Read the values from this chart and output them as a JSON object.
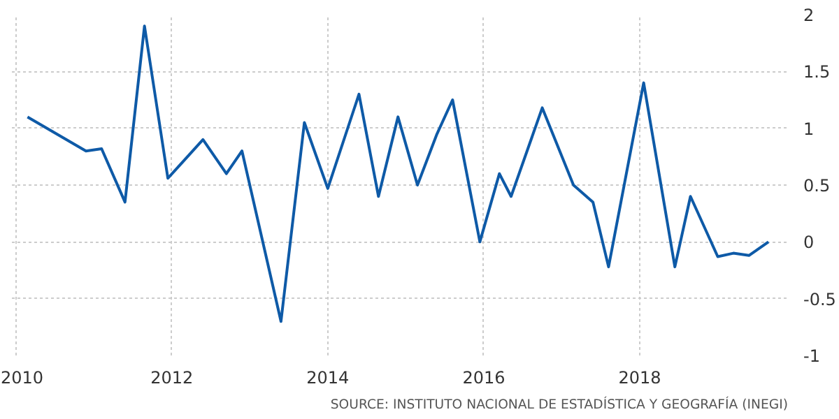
{
  "chart_data": {
    "type": "line",
    "x": [
      2010.15,
      2010.9,
      2011.1,
      2011.4,
      2011.65,
      2011.95,
      2012.4,
      2012.7,
      2012.9,
      2013.4,
      2013.7,
      2014.0,
      2014.4,
      2014.65,
      2014.9,
      2015.15,
      2015.4,
      2015.6,
      2015.95,
      2016.2,
      2016.35,
      2016.75,
      2017.15,
      2017.4,
      2017.6,
      2018.05,
      2018.45,
      2018.65,
      2019.0,
      2019.2,
      2019.4,
      2019.65
    ],
    "series": [
      {
        "color": "#0e5aa7",
        "values": [
          1.1,
          0.8,
          0.82,
          0.35,
          1.9,
          0.56,
          0.9,
          0.6,
          0.8,
          -0.7,
          1.05,
          0.47,
          1.3,
          0.4,
          1.1,
          0.5,
          0.95,
          1.25,
          0.0,
          0.6,
          0.4,
          1.18,
          0.5,
          0.35,
          -0.22,
          1.4,
          -0.22,
          0.4,
          -0.13,
          -0.1,
          -0.12,
          0.0
        ]
      }
    ],
    "xlim": [
      2009.95,
      2019.9
    ],
    "xticks": [
      2010,
      2012,
      2014,
      2016,
      2018
    ],
    "ylim": [
      -1,
      2
    ],
    "yticks": [
      -1,
      -0.5,
      0,
      0.5,
      1,
      1.5,
      2
    ],
    "grid": true,
    "line_style": "solid",
    "marker": "none",
    "annotations": [
      "SOURCE: INSTITUTO NACIONAL DE ESTADÍSTICA Y GEOGRAFÍA (INEGI)"
    ]
  }
}
